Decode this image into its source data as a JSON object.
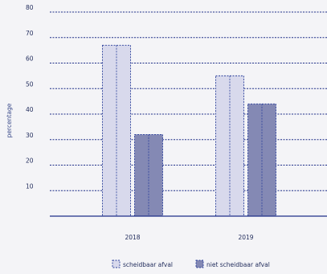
{
  "chart_data": {
    "type": "bar",
    "categories": [
      "2018",
      "2019"
    ],
    "series": [
      {
        "name": "scheidbaar afval",
        "values": [
          67,
          55
        ],
        "color": "#d8d9ec"
      },
      {
        "name": "niet scheidbaar afval",
        "values": [
          32,
          44
        ],
        "color": "#8489b4"
      }
    ],
    "ylabel": "percentage",
    "ylim": [
      0,
      80
    ],
    "yticks": [
      10,
      20,
      30,
      40,
      50,
      60,
      70,
      80
    ],
    "grid": true,
    "legend_position": "bottom-center"
  }
}
